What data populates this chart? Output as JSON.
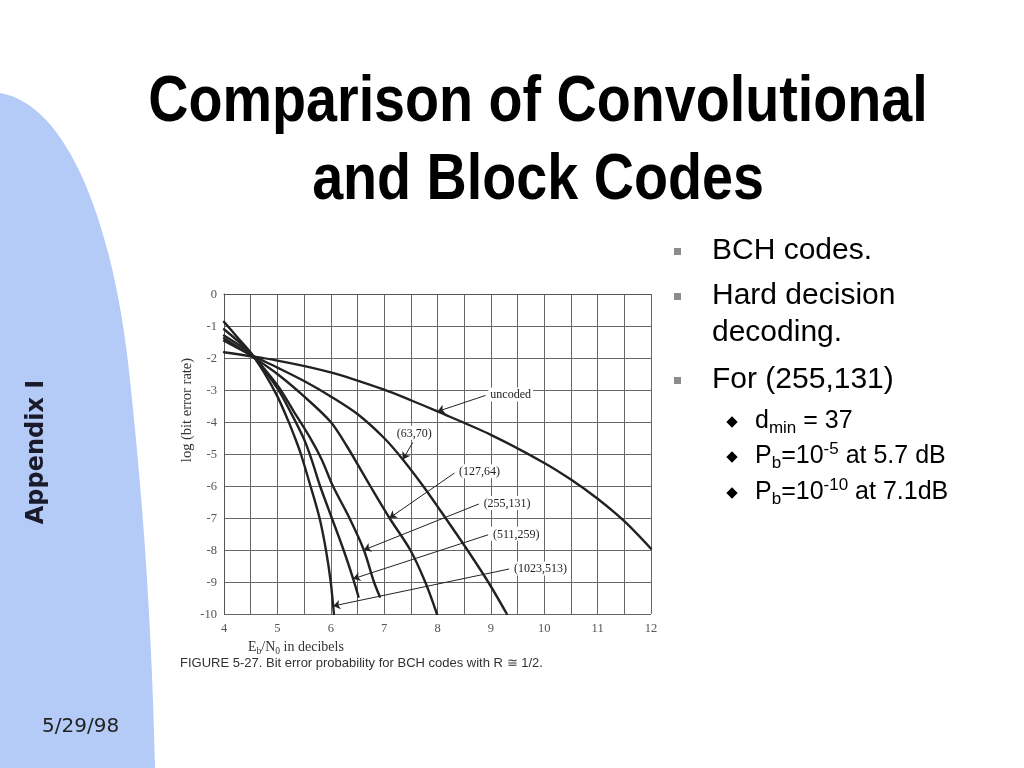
{
  "chart_data": {
    "type": "line",
    "title": "Comparison of Convolutional and Block Codes",
    "xlabel": "E$_{b}$/N$_{0}$ in decibels",
    "ylabel": "log (bit error rate)",
    "annotations": [
      "BCH codes.",
      "Hard decision decoding.",
      "For (255,131)",
      "d$_{min}$ = 37",
      "P$_{b}$=10$^{-5}$ at 5.7 dB",
      "P$_{b}$=10$^{-10}$ at 7.1dB",
      "FIGURE 5-27. Bit error probability for BCH codes with R ≅ 1/2.",
      "Appendix I",
      "5/29/98"
    ],
    "series": [
      {
        "name": "uncoded",
        "color": "#222222",
        "x": [
          4,
          5,
          6,
          7,
          7.5,
          8,
          9,
          10,
          10.5,
          11,
          11.5,
          12
        ],
        "values": [
          -1.82,
          -2.08,
          -2.45,
          -2.99,
          -3.32,
          -3.67,
          -4.4,
          -5.28,
          -5.8,
          -6.4,
          -7.1,
          -7.96
        ]
      },
      {
        "name": "(63,70)",
        "color": "#222222",
        "x": [
          4,
          4.5,
          5,
          5.5,
          6,
          6.5,
          7,
          7.35,
          7.73,
          8.15,
          8.56,
          8.95,
          9.3
        ],
        "values": [
          -1.46,
          -1.9,
          -2.3,
          -2.72,
          -3.2,
          -3.75,
          -4.5,
          -5.17,
          -6,
          -7,
          -8,
          -9,
          -10
        ]
      },
      {
        "name": "(127,64)",
        "color": "#222222",
        "x": [
          4,
          4.5,
          5,
          5.5,
          6,
          6.3,
          6.74,
          7.1,
          7.49,
          7.77,
          7.99
        ],
        "values": [
          -1.38,
          -1.92,
          -2.5,
          -3.2,
          -4.0,
          -4.75,
          -6,
          -7,
          -8,
          -9,
          -10
        ]
      },
      {
        "name": "(255,131)",
        "color": "#222222",
        "x": [
          4,
          4.5,
          5,
          5.3,
          5.63,
          5.83,
          6.04,
          6.35,
          6.62,
          6.81,
          6.92
        ],
        "values": [
          -1.3,
          -1.88,
          -2.85,
          -3.65,
          -4.54,
          -5.17,
          -6,
          -7,
          -8,
          -9,
          -9.46
        ]
      },
      {
        "name": "(511,259)",
        "color": "#222222",
        "x": [
          4,
          4.5,
          5,
          5.25,
          5.5,
          5.64,
          5.8,
          6.02,
          6.24,
          6.42,
          6.52
        ],
        "values": [
          -1.1,
          -1.85,
          -2.95,
          -3.7,
          -4.54,
          -5.17,
          -6,
          -7,
          -8,
          -8.9,
          -9.46
        ]
      },
      {
        "name": "(1023,513)",
        "color": "#222222",
        "x": [
          4,
          4.25,
          4.5,
          4.75,
          5,
          5.2,
          5.34,
          5.44,
          5.62,
          5.79,
          5.91,
          6.0,
          6.045,
          6.06
        ],
        "values": [
          -0.87,
          -1.35,
          -1.83,
          -2.45,
          -3.2,
          -3.95,
          -4.54,
          -5,
          -6,
          -7,
          -8,
          -9,
          -9.75,
          -10
        ]
      }
    ],
    "xlim": [
      4,
      12
    ],
    "xticks": [
      4,
      {
        "value": 4.5,
        "label": null
      },
      5,
      {
        "value": 5.5,
        "label": null
      },
      6,
      {
        "value": 6.5,
        "label": null
      },
      7,
      {
        "value": 7.5,
        "label": null
      },
      8,
      {
        "value": 8.5,
        "label": null
      },
      9,
      {
        "value": 9.5,
        "label": null
      },
      10,
      {
        "value": 10.5,
        "label": null
      },
      11,
      {
        "value": 11.5,
        "label": null
      },
      12
    ],
    "ylim": [
      -10,
      0
    ],
    "yticks": [
      -10,
      -9,
      -8,
      -7,
      -6,
      -5,
      -4,
      -3,
      -2,
      -1,
      0
    ],
    "grid": true,
    "marker": "none",
    "line_style": "solid"
  }
}
